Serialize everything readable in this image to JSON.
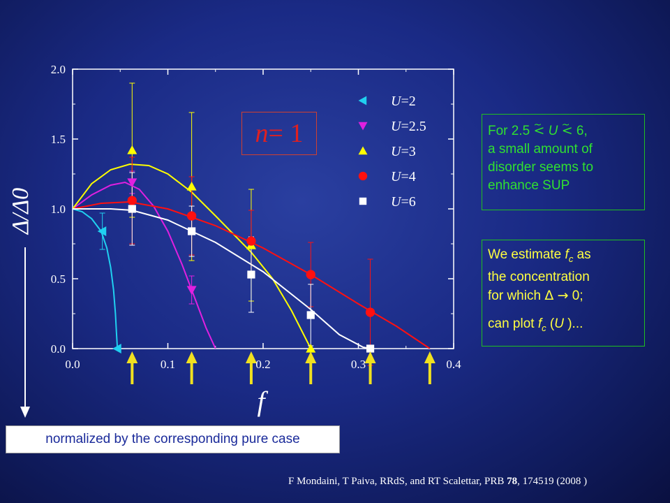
{
  "chart_data": {
    "type": "line",
    "xlabel": "f",
    "ylabel": "Δ/Δ0",
    "xlim": [
      0.0,
      0.4
    ],
    "ylim": [
      0.0,
      2.0
    ],
    "x_ticks": [
      "0.0",
      "0.1",
      "0.2",
      "0.3",
      "0.4"
    ],
    "y_ticks": [
      "0.0",
      "0.5",
      "1.0",
      "1.5",
      "2.0"
    ],
    "legend_position": "top-right",
    "series": [
      {
        "name": "U=2",
        "marker": "triangle-left",
        "color": "#20d0f0",
        "points": [
          {
            "x": 0.0,
            "y": 1.0,
            "err": 0.0
          },
          {
            "x": 0.03125,
            "y": 0.84,
            "err": 0.13
          },
          {
            "x": 0.047,
            "y": 0.0,
            "err": 0.0
          }
        ],
        "fit": [
          [
            0.0,
            1.0
          ],
          [
            0.01,
            0.98
          ],
          [
            0.02,
            0.93
          ],
          [
            0.03,
            0.84
          ],
          [
            0.036,
            0.72
          ],
          [
            0.04,
            0.58
          ],
          [
            0.043,
            0.42
          ],
          [
            0.045,
            0.25
          ],
          [
            0.046,
            0.12
          ],
          [
            0.047,
            0.0
          ]
        ]
      },
      {
        "name": "U=2.5",
        "marker": "triangle-down",
        "color": "#e020e0",
        "points": [
          {
            "x": 0.0,
            "y": 1.0,
            "err": 0.0
          },
          {
            "x": 0.0625,
            "y": 1.19,
            "err": 0.08
          },
          {
            "x": 0.125,
            "y": 0.42,
            "err": 0.1
          }
        ],
        "fit": [
          [
            0.0,
            1.0
          ],
          [
            0.02,
            1.1
          ],
          [
            0.04,
            1.17
          ],
          [
            0.055,
            1.19
          ],
          [
            0.07,
            1.14
          ],
          [
            0.085,
            1.02
          ],
          [
            0.1,
            0.84
          ],
          [
            0.115,
            0.6
          ],
          [
            0.13,
            0.33
          ],
          [
            0.14,
            0.15
          ],
          [
            0.15,
            0.0
          ]
        ]
      },
      {
        "name": "U=3",
        "marker": "triangle-up",
        "color": "#ffff00",
        "points": [
          {
            "x": 0.0,
            "y": 1.0,
            "err": 0.0
          },
          {
            "x": 0.0625,
            "y": 1.42,
            "err": 0.48
          },
          {
            "x": 0.125,
            "y": 1.16,
            "err": 0.53
          },
          {
            "x": 0.1875,
            "y": 0.74,
            "err": 0.4
          },
          {
            "x": 0.25,
            "y": 0.0,
            "err": 0.0
          }
        ],
        "fit": [
          [
            0.0,
            1.0
          ],
          [
            0.02,
            1.18
          ],
          [
            0.04,
            1.28
          ],
          [
            0.06,
            1.32
          ],
          [
            0.08,
            1.31
          ],
          [
            0.1,
            1.25
          ],
          [
            0.125,
            1.12
          ],
          [
            0.15,
            0.95
          ],
          [
            0.1875,
            0.69
          ],
          [
            0.21,
            0.5
          ],
          [
            0.23,
            0.27
          ],
          [
            0.25,
            0.0
          ]
        ]
      },
      {
        "name": "U=4",
        "marker": "circle",
        "color": "#ff1010",
        "points": [
          {
            "x": 0.0,
            "y": 1.0,
            "err": 0.0
          },
          {
            "x": 0.0625,
            "y": 1.06,
            "err": 0.31
          },
          {
            "x": 0.125,
            "y": 0.95,
            "err": 0.28
          },
          {
            "x": 0.1875,
            "y": 0.77,
            "err": 0.22
          },
          {
            "x": 0.25,
            "y": 0.53,
            "err": 0.23
          },
          {
            "x": 0.3125,
            "y": 0.26,
            "err": 0.38
          }
        ],
        "fit": [
          [
            0.0,
            1.0
          ],
          [
            0.03,
            1.04
          ],
          [
            0.06,
            1.05
          ],
          [
            0.1,
            1.0
          ],
          [
            0.15,
            0.88
          ],
          [
            0.2,
            0.72
          ],
          [
            0.25,
            0.53
          ],
          [
            0.3,
            0.32
          ],
          [
            0.34,
            0.16
          ],
          [
            0.375,
            0.0
          ]
        ]
      },
      {
        "name": "U=6",
        "marker": "square",
        "color": "#ffffff",
        "points": [
          {
            "x": 0.0,
            "y": 1.0,
            "err": 0.0
          },
          {
            "x": 0.0625,
            "y": 1.0,
            "err": 0.26
          },
          {
            "x": 0.125,
            "y": 0.84,
            "err": 0.18
          },
          {
            "x": 0.1875,
            "y": 0.53,
            "err": 0.27
          },
          {
            "x": 0.25,
            "y": 0.24,
            "err": 0.22
          },
          {
            "x": 0.3125,
            "y": 0.0,
            "err": 0.0
          }
        ],
        "fit": [
          [
            0.0,
            1.0
          ],
          [
            0.04,
            1.0
          ],
          [
            0.0625,
            0.99
          ],
          [
            0.1,
            0.92
          ],
          [
            0.15,
            0.76
          ],
          [
            0.2,
            0.55
          ],
          [
            0.25,
            0.28
          ],
          [
            0.28,
            0.1
          ],
          [
            0.305,
            0.01
          ],
          [
            0.3125,
            0.0
          ]
        ]
      }
    ],
    "arrows_x": [
      0.0625,
      0.125,
      0.1875,
      0.25,
      0.3125,
      0.375
    ]
  },
  "annotations": {
    "n_label_italic": "n",
    "n_label_rest": " = 1"
  },
  "notes": {
    "note1_part1": "For 2.5 ",
    "note1_lt1": "<",
    "note1_tilde1": "~",
    "note1_u": " U ",
    "note1_lt2": "<",
    "note1_tilde2": "~",
    "note1_part2": " 6,",
    "note1_line2": "a small amount of",
    "note1_line3": "disorder seems to",
    "note1_line4": "enhance SUP",
    "note2_a": "We estimate ",
    "note2_f": "f",
    "note2_sub": "c",
    "note2_b": " as",
    "note2_line2": "the concentration",
    "note2_line3a": "for which ",
    "note2_delta": "Δ",
    "note2_arrow": "→",
    "note2_line3b": " 0;",
    "note2_line4a": "can plot ",
    "note2_f2": "f",
    "note2_sub2": "c",
    "note2_line4b": " (",
    "note2_u": "U",
    "note2_line4c": " )..."
  },
  "footnote": "normalized by the corresponding pure case",
  "citation": {
    "text1": "F Mondaini, T Paiva, RRdS, and RT Scalettar, PRB ",
    "vol": "78",
    "text2": ", 174519 (2008 )"
  }
}
